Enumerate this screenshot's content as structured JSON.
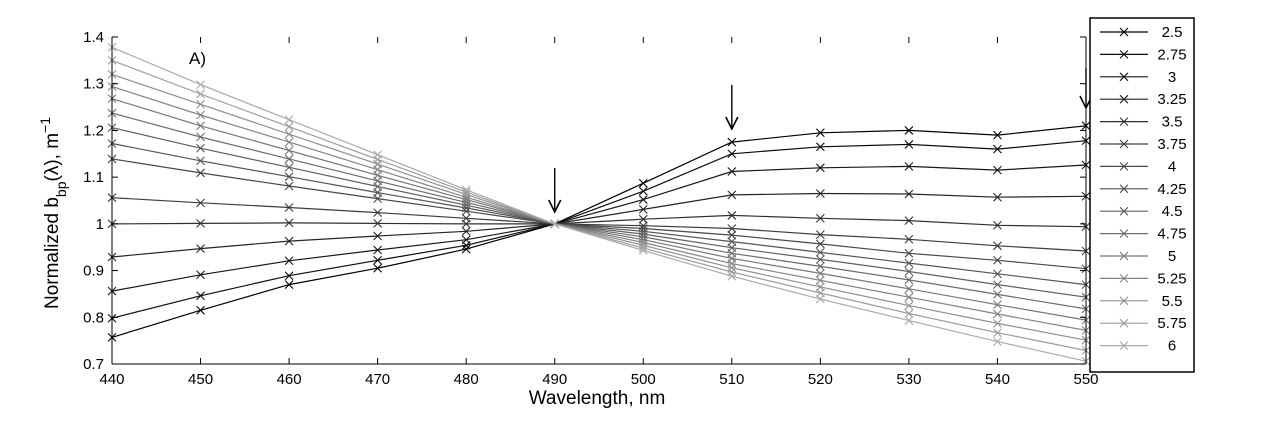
{
  "chart_data": {
    "type": "line",
    "panel_label": "A)",
    "xlabel": "Wavelength, nm",
    "ylabel_parts": {
      "base": "Normalized b",
      "sub": "bp",
      "mid": "(λ), m",
      "sup": "−1"
    },
    "xlim": [
      440,
      550
    ],
    "ylim": [
      0.7,
      1.4
    ],
    "x": [
      440,
      450,
      460,
      470,
      480,
      490,
      500,
      510,
      520,
      530,
      540,
      550
    ],
    "xticks": [
      "440",
      "450",
      "460",
      "470",
      "480",
      "490",
      "500",
      "510",
      "520",
      "530",
      "540",
      "550"
    ],
    "yticks": [
      "0.7",
      "0.8",
      "0.9",
      "1",
      "1.1",
      "1.2",
      "1.3",
      "1.4"
    ],
    "yticks_values": [
      0.7,
      0.8,
      0.9,
      1.0,
      1.1,
      1.2,
      1.3,
      1.4
    ],
    "arrows_at_x": [
      490,
      510,
      550
    ],
    "series": [
      {
        "name": "2.5",
        "color": "#000000",
        "values": [
          0.757,
          0.815,
          0.87,
          0.905,
          0.946,
          1.0,
          1.087,
          1.175,
          1.195,
          1.2,
          1.19,
          1.21
        ]
      },
      {
        "name": "2.75",
        "color": "#0c0c0c",
        "values": [
          0.798,
          0.846,
          0.889,
          0.922,
          0.954,
          1.0,
          1.07,
          1.15,
          1.165,
          1.17,
          1.16,
          1.178
        ]
      },
      {
        "name": "3",
        "color": "#181818",
        "values": [
          0.856,
          0.891,
          0.921,
          0.944,
          0.966,
          1.0,
          1.052,
          1.112,
          1.12,
          1.123,
          1.115,
          1.126
        ]
      },
      {
        "name": "3.25",
        "color": "#242424",
        "values": [
          0.929,
          0.947,
          0.963,
          0.974,
          0.984,
          1.0,
          1.031,
          1.062,
          1.065,
          1.064,
          1.057,
          1.059
        ]
      },
      {
        "name": "3.5",
        "color": "#303030",
        "values": [
          1.0,
          1.001,
          1.002,
          1.001,
          1.0,
          1.0,
          1.01,
          1.018,
          1.012,
          1.007,
          0.997,
          0.994
        ]
      },
      {
        "name": "3.75",
        "color": "#3c3c3c",
        "values": [
          1.056,
          1.045,
          1.035,
          1.024,
          1.012,
          1.0,
          0.996,
          0.99,
          0.977,
          0.967,
          0.953,
          0.942
        ]
      },
      {
        "name": "4",
        "color": "#484848",
        "values": [
          1.139,
          1.109,
          1.081,
          1.054,
          1.027,
          1.0,
          0.99,
          0.976,
          0.957,
          0.937,
          0.922,
          0.904
        ]
      },
      {
        "name": "4.25",
        "color": "#545454",
        "values": [
          1.172,
          1.135,
          1.101,
          1.067,
          1.034,
          1.0,
          0.984,
          0.962,
          0.939,
          0.916,
          0.893,
          0.87
        ]
      },
      {
        "name": "4.5",
        "color": "#606060",
        "values": [
          1.206,
          1.162,
          1.121,
          1.08,
          1.04,
          1.0,
          0.978,
          0.949,
          0.924,
          0.898,
          0.87,
          0.843
        ]
      },
      {
        "name": "4.75",
        "color": "#6c6c6c",
        "values": [
          1.237,
          1.186,
          1.139,
          1.092,
          1.046,
          1.0,
          0.972,
          0.937,
          0.909,
          0.88,
          0.849,
          0.818
        ]
      },
      {
        "name": "5",
        "color": "#787878",
        "values": [
          1.268,
          1.21,
          1.157,
          1.104,
          1.052,
          1.0,
          0.966,
          0.926,
          0.894,
          0.861,
          0.827,
          0.794
        ]
      },
      {
        "name": "5.25",
        "color": "#848484",
        "values": [
          1.294,
          1.233,
          1.175,
          1.116,
          1.057,
          1.0,
          0.96,
          0.915,
          0.879,
          0.843,
          0.807,
          0.772
        ]
      },
      {
        "name": "5.5",
        "color": "#909090",
        "values": [
          1.32,
          1.256,
          1.192,
          1.128,
          1.063,
          1.0,
          0.954,
          0.906,
          0.865,
          0.825,
          0.787,
          0.751
        ]
      },
      {
        "name": "5.75",
        "color": "#9c9c9c",
        "values": [
          1.35,
          1.278,
          1.208,
          1.138,
          1.068,
          1.0,
          0.948,
          0.897,
          0.852,
          0.808,
          0.767,
          0.729
        ]
      },
      {
        "name": "6",
        "color": "#aaaaaa",
        "values": [
          1.378,
          1.298,
          1.223,
          1.148,
          1.073,
          1.0,
          0.943,
          0.888,
          0.839,
          0.793,
          0.748,
          0.706
        ]
      }
    ]
  }
}
